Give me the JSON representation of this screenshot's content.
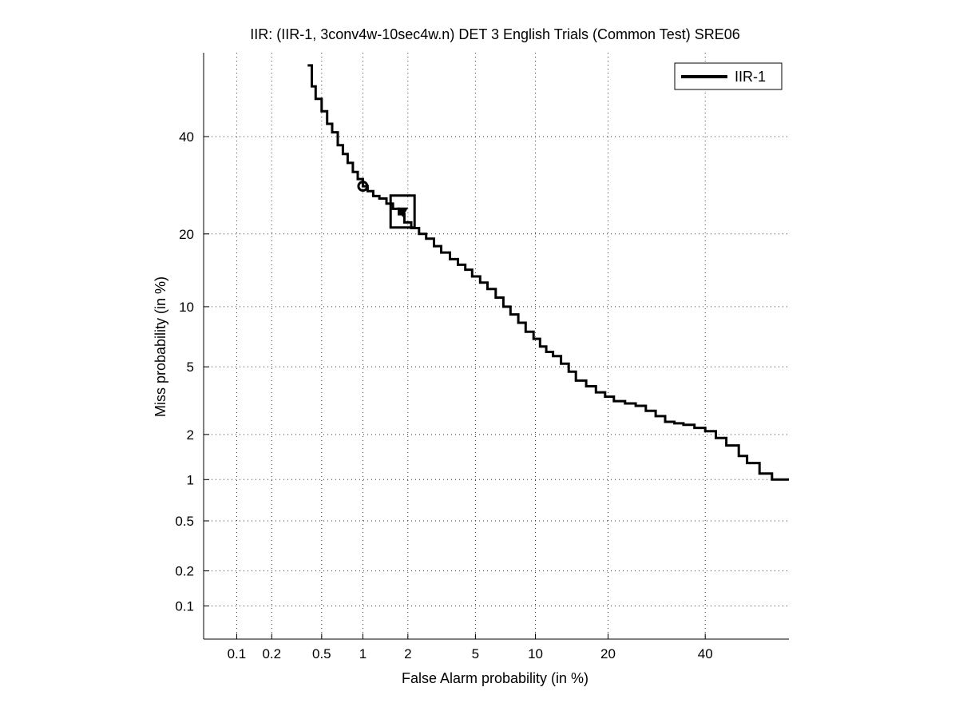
{
  "chart_data": {
    "type": "line",
    "title": "IIR: (IIR-1, 3conv4w-10sec4w.n) DET 3 English Trials (Common Test) SRE06",
    "xlabel": "False Alarm probability (in %)",
    "ylabel": "Miss probability (in %)",
    "x_scale": "normal-deviate (probit)",
    "y_scale": "normal-deviate (probit)",
    "xlim": [
      0.05,
      60
    ],
    "ylim": [
      0.05,
      60
    ],
    "x_ticks": [
      0.1,
      0.2,
      0.5,
      1,
      2,
      5,
      10,
      20,
      40
    ],
    "x_tick_labels": [
      "0.1",
      "0.2",
      "0.5",
      "1",
      "2",
      "5",
      "10",
      "20",
      "40"
    ],
    "y_ticks": [
      0.1,
      0.2,
      0.5,
      1,
      2,
      5,
      10,
      20,
      40
    ],
    "y_tick_labels": [
      "0.1",
      "0.2",
      "0.5",
      "1",
      "2",
      "5",
      "10",
      "20",
      "40"
    ],
    "grid": "dotted",
    "legend": {
      "position": "top-right",
      "entries": [
        "IIR-1"
      ]
    },
    "series": [
      {
        "name": "IIR-1",
        "color": "#000000",
        "x": [
          0.39,
          0.42,
          0.45,
          0.5,
          0.55,
          0.6,
          0.66,
          0.72,
          0.78,
          0.85,
          0.92,
          1.0,
          1.08,
          1.18,
          1.3,
          1.45,
          1.6,
          1.75,
          1.9,
          2.1,
          2.35,
          2.6,
          2.9,
          3.2,
          3.6,
          4.0,
          4.4,
          4.8,
          5.3,
          5.8,
          6.4,
          7.0,
          7.6,
          8.3,
          9.0,
          9.8,
          10.5,
          11.2,
          12.0,
          13.0,
          14.0,
          15.0,
          16.5,
          18.0,
          19.5,
          21.0,
          23.0,
          25.0,
          27.0,
          29.0,
          31.0,
          33.0,
          35.0,
          37.5,
          40.0,
          42.5,
          45.0,
          48.0,
          50.0,
          53.0,
          56.0,
          60.0
        ],
        "y": [
          57,
          52,
          49,
          46,
          43,
          41,
          38,
          36,
          34,
          32,
          30.5,
          29,
          28,
          27,
          26.5,
          25.5,
          24.5,
          23.5,
          22,
          21,
          20,
          19.2,
          18,
          17,
          16,
          15.2,
          14.5,
          13.6,
          12.8,
          12,
          11,
          10,
          9.2,
          8.4,
          7.6,
          7,
          6.4,
          6,
          5.7,
          5.2,
          4.7,
          4.2,
          3.9,
          3.6,
          3.4,
          3.2,
          3.1,
          3.0,
          2.8,
          2.6,
          2.4,
          2.35,
          2.3,
          2.2,
          2.1,
          1.9,
          1.7,
          1.45,
          1.3,
          1.1,
          1.0,
          1.0
        ]
      }
    ],
    "markers": [
      {
        "shape": "circle",
        "x": 1.0,
        "y": 29
      },
      {
        "shape": "triangle",
        "x": 1.85,
        "y": 24
      },
      {
        "shape": "square",
        "x": 1.85,
        "y": 24
      }
    ]
  }
}
